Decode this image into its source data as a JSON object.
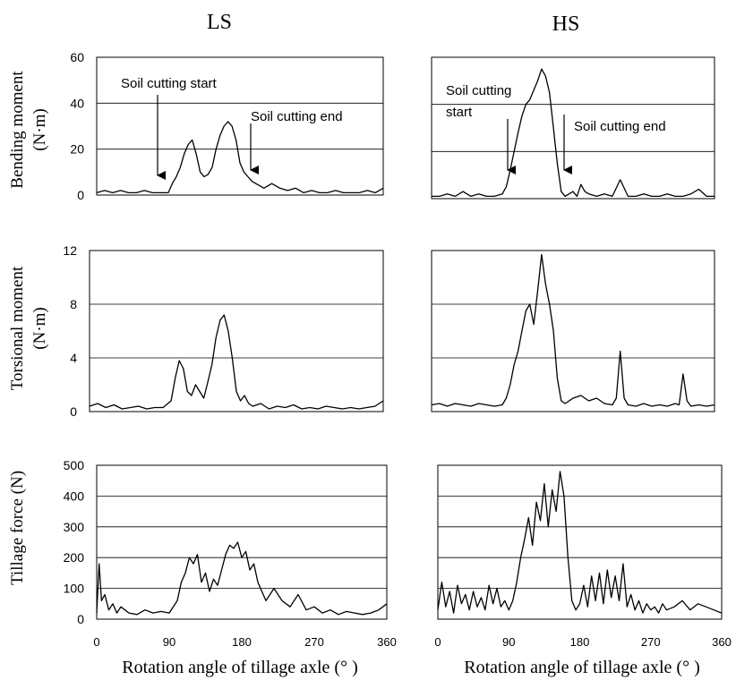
{
  "columns": [
    "LS",
    "HS"
  ],
  "row_ylabels": [
    [
      "Bending moment",
      "(N·m)"
    ],
    [
      "Torsional moment",
      "(N·m)"
    ],
    [
      "Tillage force (N)"
    ]
  ],
  "xlabel": "Rotation angle of tillage axle (° )",
  "x_ticks": [
    "0",
    "90",
    "180",
    "270",
    "360"
  ],
  "annotations": {
    "ls_start": "Soil cutting start",
    "ls_end": "Soil cutting end",
    "hs_start_line1": "Soil cutting",
    "hs_start_line2": "start",
    "hs_end": "Soil cutting end"
  },
  "colors": {
    "line": "#000000",
    "grid": "#000000",
    "frame": "#000000"
  },
  "chart_data": [
    {
      "type": "line",
      "column": "LS",
      "ylabel": "Bending moment (N·m)",
      "xlabel": "",
      "xlim": [
        0,
        360
      ],
      "ylim": [
        0,
        60
      ],
      "yticks": [
        "0",
        "20",
        "40",
        "60"
      ],
      "grid": true,
      "x": [
        0,
        10,
        20,
        30,
        40,
        50,
        60,
        70,
        80,
        90,
        95,
        100,
        105,
        110,
        115,
        120,
        125,
        130,
        135,
        140,
        145,
        150,
        155,
        160,
        165,
        170,
        175,
        180,
        185,
        190,
        195,
        200,
        205,
        210,
        220,
        230,
        240,
        250,
        260,
        270,
        280,
        290,
        300,
        310,
        320,
        330,
        340,
        350,
        360
      ],
      "values": [
        1,
        2,
        1,
        2,
        1,
        1,
        2,
        1,
        1,
        1,
        5,
        8,
        12,
        18,
        22,
        24,
        18,
        10,
        8,
        9,
        12,
        20,
        26,
        30,
        32,
        30,
        24,
        14,
        10,
        8,
        6,
        5,
        4,
        3,
        5,
        3,
        2,
        3,
        1,
        2,
        1,
        1,
        2,
        1,
        1,
        1,
        2,
        1,
        3
      ]
    },
    {
      "type": "line",
      "column": "HS",
      "ylabel": "Bending moment (N·m)",
      "xlabel": "",
      "xlim": [
        0,
        360
      ],
      "ylim": [
        0,
        60
      ],
      "yticks": [],
      "grid": true,
      "x": [
        0,
        10,
        20,
        30,
        40,
        50,
        60,
        70,
        80,
        90,
        95,
        100,
        105,
        110,
        115,
        120,
        125,
        130,
        135,
        140,
        145,
        150,
        155,
        160,
        165,
        170,
        175,
        180,
        185,
        190,
        195,
        200,
        210,
        220,
        230,
        240,
        250,
        260,
        270,
        280,
        290,
        300,
        310,
        320,
        330,
        340,
        350,
        360
      ],
      "values": [
        1,
        1,
        2,
        1,
        3,
        1,
        2,
        1,
        1,
        2,
        5,
        12,
        20,
        28,
        35,
        40,
        42,
        46,
        50,
        55,
        52,
        45,
        30,
        15,
        3,
        1,
        2,
        3,
        1,
        6,
        3,
        2,
        1,
        2,
        1,
        8,
        1,
        1,
        2,
        1,
        1,
        2,
        1,
        1,
        2,
        4,
        1,
        1
      ]
    },
    {
      "type": "line",
      "column": "LS",
      "ylabel": "Torsional moment (N·m)",
      "xlabel": "",
      "xlim": [
        0,
        360
      ],
      "ylim": [
        0,
        12
      ],
      "yticks": [
        "0",
        "4",
        "8",
        "12"
      ],
      "grid": true,
      "x": [
        0,
        10,
        20,
        30,
        40,
        50,
        60,
        70,
        80,
        90,
        100,
        105,
        110,
        115,
        120,
        125,
        130,
        135,
        140,
        145,
        150,
        155,
        160,
        165,
        170,
        175,
        180,
        185,
        190,
        195,
        200,
        210,
        220,
        230,
        240,
        250,
        260,
        270,
        280,
        290,
        300,
        310,
        320,
        330,
        340,
        350,
        360
      ],
      "values": [
        0.4,
        0.6,
        0.3,
        0.5,
        0.2,
        0.3,
        0.4,
        0.2,
        0.3,
        0.3,
        0.8,
        2.5,
        3.8,
        3.2,
        1.5,
        1.2,
        2.0,
        1.5,
        1.0,
        2.2,
        3.5,
        5.5,
        6.8,
        7.2,
        6.0,
        4.0,
        1.5,
        0.8,
        1.2,
        0.6,
        0.4,
        0.6,
        0.2,
        0.4,
        0.3,
        0.5,
        0.2,
        0.3,
        0.2,
        0.4,
        0.3,
        0.2,
        0.3,
        0.2,
        0.3,
        0.4,
        0.8
      ]
    },
    {
      "type": "line",
      "column": "HS",
      "ylabel": "Torsional moment (N·m)",
      "xlabel": "",
      "xlim": [
        0,
        360
      ],
      "ylim": [
        0,
        12
      ],
      "yticks": [],
      "grid": true,
      "x": [
        0,
        10,
        20,
        30,
        40,
        50,
        60,
        70,
        80,
        90,
        95,
        100,
        105,
        110,
        115,
        120,
        125,
        130,
        135,
        140,
        145,
        150,
        155,
        160,
        165,
        170,
        180,
        190,
        200,
        210,
        220,
        230,
        235,
        240,
        245,
        250,
        260,
        270,
        280,
        290,
        300,
        310,
        315,
        320,
        325,
        330,
        340,
        350,
        360
      ],
      "values": [
        0.5,
        0.6,
        0.4,
        0.6,
        0.5,
        0.4,
        0.6,
        0.5,
        0.4,
        0.5,
        1.0,
        2.0,
        3.5,
        4.5,
        6.0,
        7.5,
        8.0,
        6.5,
        9.0,
        11.7,
        9.5,
        8.0,
        6.0,
        2.5,
        0.8,
        0.6,
        1.0,
        1.2,
        0.8,
        1.0,
        0.6,
        0.5,
        1.0,
        4.5,
        1.0,
        0.5,
        0.4,
        0.6,
        0.4,
        0.5,
        0.4,
        0.6,
        0.5,
        2.8,
        0.8,
        0.4,
        0.5,
        0.4,
        0.5
      ]
    },
    {
      "type": "line",
      "column": "LS",
      "ylabel": "Tillage force (N)",
      "xlabel": "Rotation angle of tillage axle (° )",
      "xlim": [
        0,
        360
      ],
      "ylim": [
        0,
        500
      ],
      "yticks": [
        "0",
        "100",
        "200",
        "300",
        "400",
        "500"
      ],
      "xticks": [
        "0",
        "90",
        "180",
        "270",
        "360"
      ],
      "grid": true,
      "x": [
        0,
        3,
        6,
        10,
        15,
        20,
        25,
        30,
        40,
        50,
        60,
        70,
        80,
        90,
        100,
        105,
        110,
        115,
        120,
        125,
        130,
        135,
        140,
        145,
        150,
        155,
        160,
        165,
        170,
        175,
        180,
        185,
        190,
        195,
        200,
        210,
        220,
        230,
        240,
        250,
        260,
        270,
        280,
        290,
        300,
        310,
        320,
        330,
        340,
        350,
        360
      ],
      "values": [
        20,
        180,
        60,
        80,
        30,
        50,
        20,
        40,
        20,
        15,
        30,
        20,
        25,
        20,
        60,
        120,
        150,
        200,
        180,
        210,
        120,
        150,
        90,
        130,
        110,
        160,
        210,
        240,
        230,
        250,
        200,
        220,
        160,
        180,
        120,
        60,
        100,
        60,
        40,
        80,
        30,
        40,
        20,
        30,
        15,
        25,
        20,
        15,
        20,
        30,
        50
      ]
    },
    {
      "type": "line",
      "column": "HS",
      "ylabel": "Tillage force (N)",
      "xlabel": "Rotation angle of tillage axle (° )",
      "xlim": [
        0,
        360
      ],
      "ylim": [
        0,
        500
      ],
      "yticks": [],
      "xticks": [
        "0",
        "90",
        "180",
        "270",
        "360"
      ],
      "grid": true,
      "x": [
        0,
        5,
        10,
        15,
        20,
        25,
        30,
        35,
        40,
        45,
        50,
        55,
        60,
        65,
        70,
        75,
        80,
        85,
        90,
        95,
        100,
        105,
        110,
        115,
        120,
        125,
        130,
        135,
        140,
        145,
        150,
        155,
        160,
        165,
        170,
        175,
        180,
        185,
        190,
        195,
        200,
        205,
        210,
        215,
        220,
        225,
        230,
        235,
        240,
        245,
        250,
        255,
        260,
        265,
        270,
        275,
        280,
        285,
        290,
        300,
        310,
        320,
        330,
        340,
        350,
        360
      ],
      "values": [
        30,
        120,
        40,
        90,
        20,
        110,
        50,
        80,
        30,
        90,
        40,
        70,
        30,
        110,
        50,
        100,
        40,
        60,
        30,
        60,
        120,
        200,
        260,
        330,
        240,
        380,
        320,
        440,
        300,
        420,
        350,
        480,
        400,
        200,
        60,
        30,
        50,
        110,
        40,
        140,
        60,
        150,
        50,
        160,
        70,
        140,
        60,
        180,
        40,
        80,
        30,
        60,
        20,
        50,
        30,
        40,
        20,
        50,
        30,
        40,
        60,
        30,
        50,
        40,
        30,
        20
      ]
    }
  ]
}
